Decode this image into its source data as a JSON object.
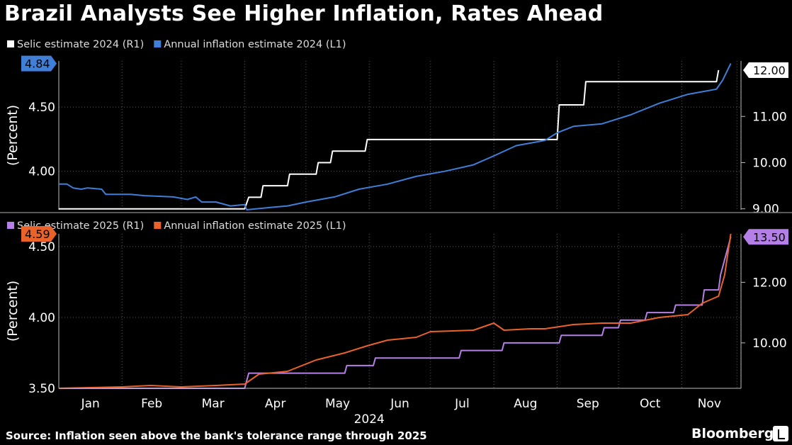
{
  "title": "Brazil Analysts See Higher Inflation, Rates Ahead",
  "source": "Source: Inflation seen above the bank's tolerance range through 2025",
  "brand": "Bloomberg",
  "colors": {
    "background": "#000000",
    "grid": "#5a5a5a",
    "selic_2024": "#ffffff",
    "inflation_2024": "#3f7fd8",
    "selic_2025": "#b57fe8",
    "inflation_2025": "#e8622a"
  },
  "chart_data": [
    {
      "type": "line",
      "panel": "top",
      "legend": [
        "Selic estimate 2024 (R1)",
        "Annual inflation estimate 2024 (L1)"
      ],
      "ylabel_left": "(Percent)",
      "left_ticks": [
        "4.50",
        "4.00"
      ],
      "right_ticks": [
        "11.00",
        "10.00",
        "9.00"
      ],
      "left_ylim": [
        3.7,
        4.86
      ],
      "right_ylim": [
        8.98,
        12.2
      ],
      "last_labels": {
        "left": "4.84",
        "right": "12.00"
      },
      "series": [
        {
          "name": "Selic estimate 2024 (R1)",
          "axis": "right",
          "points": [
            [
              "2024-01-01",
              9.0
            ],
            [
              "2024-04-01",
              9.0
            ],
            [
              "2024-04-03",
              9.25
            ],
            [
              "2024-04-09",
              9.25
            ],
            [
              "2024-04-10",
              9.5
            ],
            [
              "2024-04-22",
              9.5
            ],
            [
              "2024-04-23",
              9.75
            ],
            [
              "2024-05-06",
              9.75
            ],
            [
              "2024-05-07",
              10.0
            ],
            [
              "2024-05-13",
              10.0
            ],
            [
              "2024-05-14",
              10.25
            ],
            [
              "2024-05-30",
              10.25
            ],
            [
              "2024-05-31",
              10.5
            ],
            [
              "2024-09-01",
              10.5
            ],
            [
              "2024-09-02",
              11.25
            ],
            [
              "2024-09-14",
              11.25
            ],
            [
              "2024-09-15",
              11.75
            ],
            [
              "2024-11-18",
              11.75
            ],
            [
              "2024-11-19",
              12.0
            ]
          ]
        },
        {
          "name": "Annual inflation estimate 2024 (L1)",
          "axis": "left",
          "points": [
            [
              "2024-01-01",
              3.9
            ],
            [
              "2024-01-05",
              3.9
            ],
            [
              "2024-01-08",
              3.87
            ],
            [
              "2024-01-12",
              3.86
            ],
            [
              "2024-01-15",
              3.87
            ],
            [
              "2024-01-22",
              3.86
            ],
            [
              "2024-01-24",
              3.82
            ],
            [
              "2024-02-05",
              3.82
            ],
            [
              "2024-02-12",
              3.81
            ],
            [
              "2024-02-26",
              3.8
            ],
            [
              "2024-03-04",
              3.78
            ],
            [
              "2024-03-08",
              3.8
            ],
            [
              "2024-03-11",
              3.76
            ],
            [
              "2024-03-18",
              3.76
            ],
            [
              "2024-03-25",
              3.73
            ],
            [
              "2024-04-01",
              3.74
            ],
            [
              "2024-04-02",
              3.7
            ],
            [
              "2024-04-15",
              3.72
            ],
            [
              "2024-04-22",
              3.73
            ],
            [
              "2024-05-01",
              3.76
            ],
            [
              "2024-05-15",
              3.8
            ],
            [
              "2024-05-27",
              3.86
            ],
            [
              "2024-06-10",
              3.9
            ],
            [
              "2024-06-24",
              3.96
            ],
            [
              "2024-07-08",
              4.0
            ],
            [
              "2024-07-22",
              4.05
            ],
            [
              "2024-08-01",
              4.12
            ],
            [
              "2024-08-12",
              4.2
            ],
            [
              "2024-08-26",
              4.24
            ],
            [
              "2024-09-01",
              4.3
            ],
            [
              "2024-09-09",
              4.35
            ],
            [
              "2024-09-23",
              4.37
            ],
            [
              "2024-10-07",
              4.44
            ],
            [
              "2024-10-21",
              4.53
            ],
            [
              "2024-11-04",
              4.6
            ],
            [
              "2024-11-18",
              4.64
            ],
            [
              "2024-11-21",
              4.71
            ],
            [
              "2024-11-25",
              4.84
            ]
          ]
        }
      ]
    },
    {
      "type": "line",
      "panel": "bottom",
      "legend": [
        "Selic estimate 2025 (R1)",
        "Annual inflation estimate 2025 (L1)"
      ],
      "ylabel_left": "(Percent)",
      "left_ticks": [
        "4.50",
        "4.00",
        "3.50"
      ],
      "right_ticks": [
        "12.00",
        "10.00"
      ],
      "left_ylim": [
        3.5,
        4.59
      ],
      "right_ylim": [
        8.5,
        13.6
      ],
      "last_labels": {
        "left": "4.59",
        "right": "13.50"
      },
      "series": [
        {
          "name": "Selic estimate 2025 (R1)",
          "axis": "right",
          "points": [
            [
              "2024-01-01",
              8.5
            ],
            [
              "2024-04-01",
              8.5
            ],
            [
              "2024-04-03",
              9.0
            ],
            [
              "2024-05-20",
              9.0
            ],
            [
              "2024-05-21",
              9.25
            ],
            [
              "2024-06-03",
              9.25
            ],
            [
              "2024-06-04",
              9.5
            ],
            [
              "2024-07-15",
              9.5
            ],
            [
              "2024-07-16",
              9.75
            ],
            [
              "2024-08-05",
              9.75
            ],
            [
              "2024-08-06",
              10.0
            ],
            [
              "2024-09-02",
              10.0
            ],
            [
              "2024-09-03",
              10.25
            ],
            [
              "2024-09-23",
              10.25
            ],
            [
              "2024-09-24",
              10.5
            ],
            [
              "2024-10-01",
              10.5
            ],
            [
              "2024-10-02",
              10.75
            ],
            [
              "2024-10-14",
              10.75
            ],
            [
              "2024-10-15",
              11.0
            ],
            [
              "2024-10-28",
              11.0
            ],
            [
              "2024-10-29",
              11.25
            ],
            [
              "2024-11-11",
              11.25
            ],
            [
              "2024-11-12",
              11.75
            ],
            [
              "2024-11-19",
              11.75
            ],
            [
              "2024-11-20",
              12.25
            ],
            [
              "2024-11-25",
              13.5
            ]
          ]
        },
        {
          "name": "Annual inflation estimate 2025 (L1)",
          "axis": "left",
          "points": [
            [
              "2024-01-01",
              3.5
            ],
            [
              "2024-02-01",
              3.51
            ],
            [
              "2024-02-15",
              3.52
            ],
            [
              "2024-03-01",
              3.51
            ],
            [
              "2024-03-18",
              3.52
            ],
            [
              "2024-04-01",
              3.53
            ],
            [
              "2024-04-08",
              3.6
            ],
            [
              "2024-04-22",
              3.62
            ],
            [
              "2024-05-06",
              3.7
            ],
            [
              "2024-05-20",
              3.75
            ],
            [
              "2024-05-31",
              3.8
            ],
            [
              "2024-06-10",
              3.84
            ],
            [
              "2024-06-24",
              3.86
            ],
            [
              "2024-07-01",
              3.9
            ],
            [
              "2024-07-22",
              3.91
            ],
            [
              "2024-08-01",
              3.96
            ],
            [
              "2024-08-06",
              3.91
            ],
            [
              "2024-08-19",
              3.92
            ],
            [
              "2024-08-26",
              3.92
            ],
            [
              "2024-09-09",
              3.95
            ],
            [
              "2024-09-23",
              3.96
            ],
            [
              "2024-10-07",
              3.96
            ],
            [
              "2024-10-21",
              4.0
            ],
            [
              "2024-11-04",
              4.02
            ],
            [
              "2024-11-11",
              4.1
            ],
            [
              "2024-11-19",
              4.15
            ],
            [
              "2024-11-22",
              4.3
            ],
            [
              "2024-11-25",
              4.59
            ]
          ]
        }
      ]
    }
  ],
  "x_axis": {
    "months": [
      "Jan",
      "Feb",
      "Mar",
      "Apr",
      "May",
      "Jun",
      "Jul",
      "Aug",
      "Sep",
      "Oct",
      "Nov"
    ],
    "year": "2024",
    "xlim": [
      "2024-01-01",
      "2024-11-30"
    ]
  }
}
